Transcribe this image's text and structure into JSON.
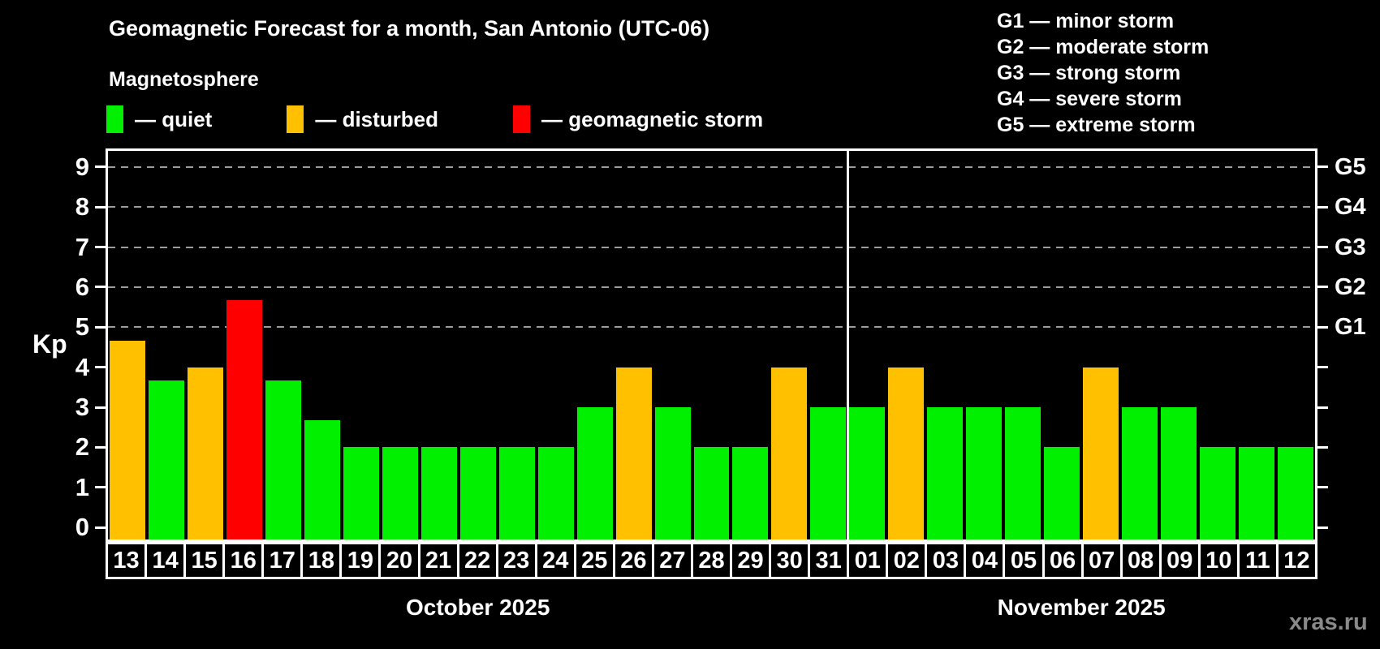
{
  "title": "Geomagnetic Forecast for a month, San Antonio (UTC-06)",
  "subtitle": "Magnetosphere",
  "legend": {
    "items": [
      {
        "label": "— quiet",
        "status": "quiet",
        "color": "#00f000"
      },
      {
        "label": "— disturbed",
        "status": "disturbed",
        "color": "#ffc000"
      },
      {
        "label": "— geomagnetic storm",
        "status": "storm",
        "color": "#ff0000"
      }
    ]
  },
  "g_scale_legend": [
    "G1 — minor storm",
    "G2 — moderate storm",
    "G3 — strong storm",
    "G4 — severe storm",
    "G5 — extreme storm"
  ],
  "watermark": "xras.ru",
  "chart_data": {
    "type": "bar",
    "title": "Geomagnetic Forecast for a month, San Antonio (UTC-06)",
    "subtitle": "Magnetosphere",
    "ylabel": "Kp",
    "xlabel": "",
    "ylim": [
      -0.3,
      9.4
    ],
    "yticks": [
      0,
      1,
      2,
      3,
      4,
      5,
      6,
      7,
      8,
      9
    ],
    "gridlines_at": [
      5,
      6,
      7,
      8,
      9
    ],
    "grid": "horizontal dashed gray lines at Kp 5-9 (storm levels G1-G5)",
    "legend_position": "top-left",
    "right_axis_labels": [
      {
        "kp": 5,
        "label": "G1"
      },
      {
        "kp": 6,
        "label": "G2"
      },
      {
        "kp": 7,
        "label": "G3"
      },
      {
        "kp": 8,
        "label": "G4"
      },
      {
        "kp": 9,
        "label": "G5"
      }
    ],
    "status_colors": {
      "quiet": "#00f000",
      "disturbed": "#ffc000",
      "storm": "#ff0000"
    },
    "months": [
      {
        "label": "October 2025",
        "days": 19
      },
      {
        "label": "November 2025",
        "days": 12
      }
    ],
    "categories": [
      "13",
      "14",
      "15",
      "16",
      "17",
      "18",
      "19",
      "20",
      "21",
      "22",
      "23",
      "24",
      "25",
      "26",
      "27",
      "28",
      "29",
      "30",
      "31",
      "01",
      "02",
      "03",
      "04",
      "05",
      "06",
      "07",
      "08",
      "09",
      "10",
      "11",
      "12"
    ],
    "values": [
      4.67,
      3.67,
      4,
      5.67,
      3.67,
      2.67,
      2,
      2,
      2,
      2,
      2,
      2,
      3,
      4,
      3,
      2,
      2,
      4,
      3,
      3,
      4,
      3,
      3,
      3,
      2,
      4,
      3,
      3,
      2,
      2,
      2
    ],
    "statuses": [
      "disturbed",
      "quiet",
      "disturbed",
      "storm",
      "quiet",
      "quiet",
      "quiet",
      "quiet",
      "quiet",
      "quiet",
      "quiet",
      "quiet",
      "quiet",
      "disturbed",
      "quiet",
      "quiet",
      "quiet",
      "disturbed",
      "quiet",
      "quiet",
      "disturbed",
      "quiet",
      "quiet",
      "quiet",
      "quiet",
      "disturbed",
      "quiet",
      "quiet",
      "quiet",
      "quiet",
      "quiet"
    ]
  }
}
